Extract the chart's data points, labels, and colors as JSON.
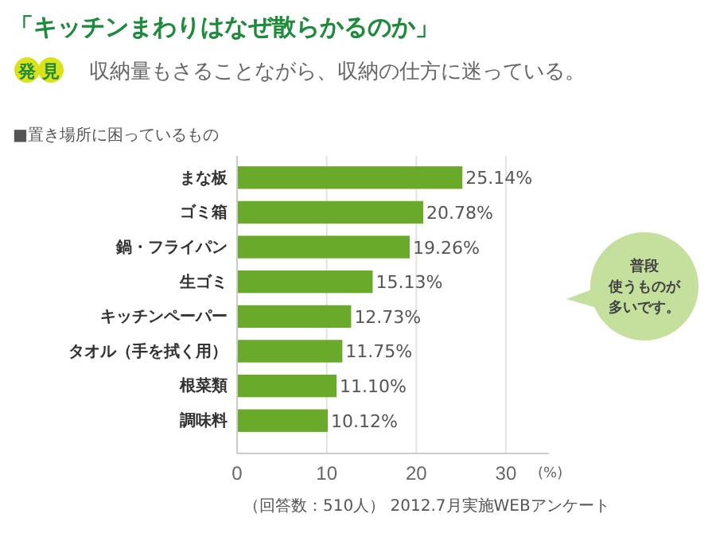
{
  "chart_data": {
    "type": "bar",
    "orientation": "horizontal",
    "title": "「キッチンまわりはなぜ散らかるのか」",
    "subtitle": "収納量もさることながら、収納の仕方に迷っている。",
    "categories": [
      "まな板",
      "ゴミ箱",
      "鍋・フライパン",
      "生ゴミ",
      "キッチンペーパー",
      "タオル（手を拭く用）",
      "根菜類",
      "調味料"
    ],
    "values": [
      25.14,
      20.78,
      19.26,
      15.13,
      12.73,
      11.75,
      11.1,
      10.12
    ],
    "value_labels": [
      "25.14%",
      "20.78%",
      "19.26%",
      "15.13%",
      "12.73%",
      "11.75%",
      "11.10%",
      "10.12%"
    ],
    "color": "#6aaa2a",
    "xlim": [
      0,
      34.8
    ],
    "xticks": [
      0,
      10,
      20,
      30
    ],
    "xlabel": "(%)",
    "grid": "x",
    "annotations": [
      "発見",
      "■置き場所に困っているもの",
      "普段使うものが多いです。",
      "（回答数：510人） 2012.7月実施WEBアンケート"
    ]
  }
}
